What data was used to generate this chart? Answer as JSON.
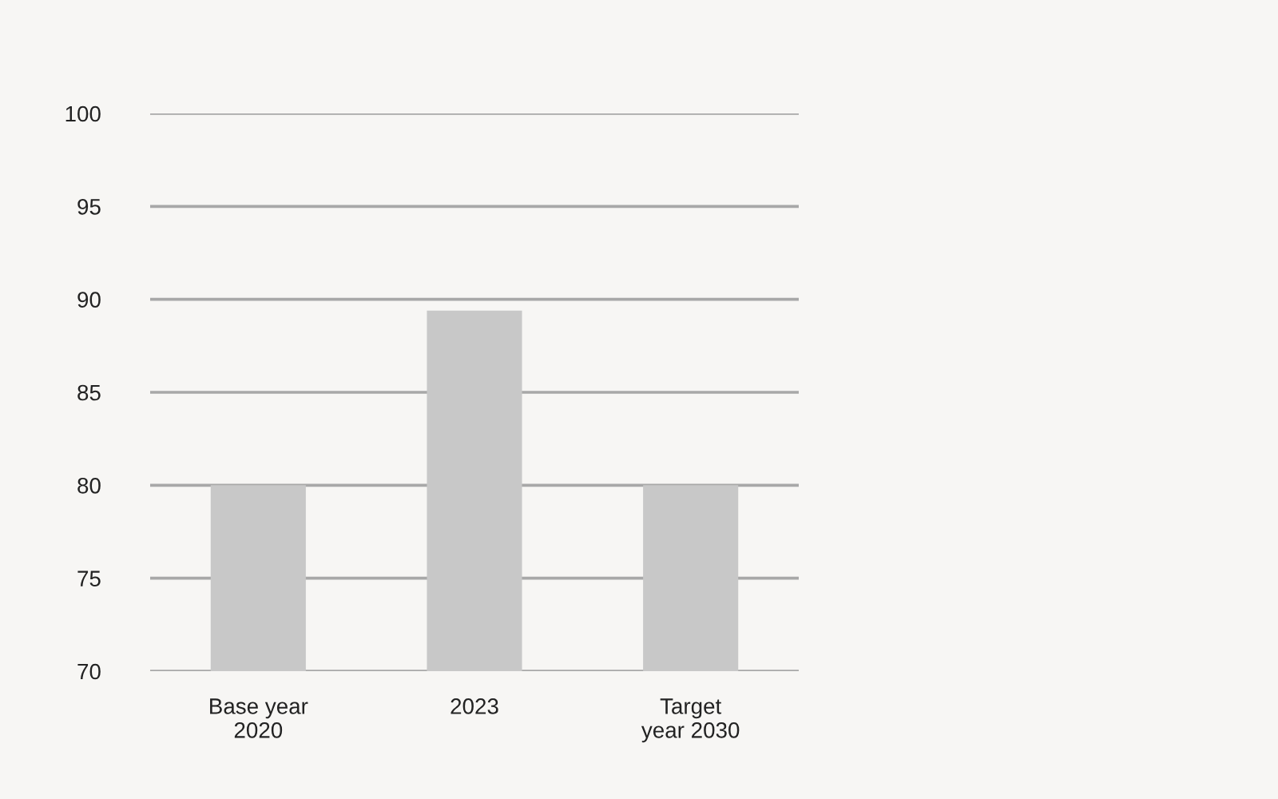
{
  "chart_data": {
    "type": "bar",
    "categories": [
      "Base year\n2020",
      "2023",
      "Target\nyear 2030"
    ],
    "values": [
      80,
      89.4,
      80
    ],
    "color": "#c8c8c8",
    "ylim": [
      70,
      100
    ],
    "yticks": [
      70,
      75,
      80,
      85,
      90,
      95,
      100
    ],
    "grid": "y"
  }
}
